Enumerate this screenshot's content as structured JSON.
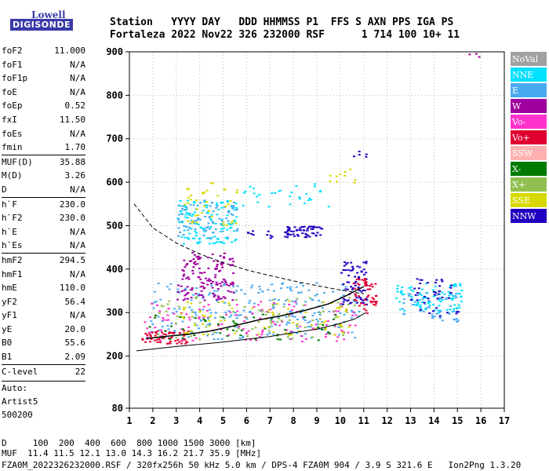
{
  "logo": {
    "line1": "Lowell",
    "line2": "DIGISONDE"
  },
  "header": {
    "labels": "Station   YYYY DAY   DDD HHMMSS P1  FFS S AXN PPS IGA PS",
    "values": "Fortaleza 2022 Nov22 326 232000 RSF      1 714 100 10+ 11"
  },
  "parameters": {
    "group1": [
      {
        "name": "foF2",
        "value": "11.000"
      },
      {
        "name": "foF1",
        "value": "N/A"
      },
      {
        "name": "foF1p",
        "value": "N/A"
      },
      {
        "name": "foE",
        "value": "N/A"
      },
      {
        "name": "foEp",
        "value": "0.52"
      },
      {
        "name": "fxI",
        "value": "11.50"
      },
      {
        "name": "foEs",
        "value": "N/A"
      },
      {
        "name": "fmin",
        "value": "1.70"
      }
    ],
    "group2": [
      {
        "name": "MUF(D)",
        "value": "35.88"
      },
      {
        "name": "M(D)",
        "value": "3.26"
      },
      {
        "name": "D",
        "value": "N/A"
      }
    ],
    "group3": [
      {
        "name": "h`F",
        "value": "230.0"
      },
      {
        "name": "h`F2",
        "value": "230.0"
      },
      {
        "name": "h`E",
        "value": "N/A"
      },
      {
        "name": "h`Es",
        "value": "N/A"
      }
    ],
    "group4": [
      {
        "name": "hmF2",
        "value": "294.5"
      },
      {
        "name": "hmF1",
        "value": "N/A"
      },
      {
        "name": "hmE",
        "value": "110.0"
      },
      {
        "name": "yF2",
        "value": "56.4"
      },
      {
        "name": "yF1",
        "value": "N/A"
      },
      {
        "name": "yE",
        "value": "20.0"
      },
      {
        "name": "B0",
        "value": "55.6"
      },
      {
        "name": "B1",
        "value": "2.09"
      }
    ],
    "group5": [
      {
        "name": "C-level",
        "value": "22"
      }
    ],
    "auto_lines": [
      "Auto:",
      "Artist5",
      "500200"
    ]
  },
  "legend": [
    {
      "label": "NoVal",
      "color": "#a0a0a0"
    },
    {
      "label": "NNE",
      "color": "#00e0ff"
    },
    {
      "label": "E",
      "color": "#4aaaf0"
    },
    {
      "label": "W",
      "color": "#a000a0"
    },
    {
      "label": "Vo-",
      "color": "#ff33cc"
    },
    {
      "label": "Vo+",
      "color": "#e00030"
    },
    {
      "label": "SSW",
      "color": "#ffb0b0"
    },
    {
      "label": "X-",
      "color": "#007a00"
    },
    {
      "label": "X+",
      "color": "#90c050"
    },
    {
      "label": "SSE",
      "color": "#d8d800"
    },
    {
      "label": "NNW",
      "color": "#2000c0"
    }
  ],
  "footer": {
    "line1": "D     100  200  400  600  800 1000 1500 3000 [km]",
    "line2": "MUF  11.4 11.5 12.1 13.0 14.3 16.2 21.7 35.9 [MHz]",
    "line3": "FZA0M_2022326232000.RSF / 320fx256h 50 kHz 5.0 km / DPS-4 FZA0M 904 / 3.9 S 321.6 E   Ion2Png 1.3.20"
  },
  "chart_data": {
    "type": "scatter",
    "title": "",
    "xlabel": "",
    "ylabel": "",
    "xlim": [
      1,
      17
    ],
    "ylim": [
      80,
      900
    ],
    "x_ticks": [
      1,
      2,
      3,
      4,
      5,
      6,
      7,
      8,
      9,
      10,
      11,
      12,
      13,
      14,
      15,
      16,
      17
    ],
    "y_ticks": [
      80,
      200,
      300,
      400,
      500,
      600,
      700,
      800,
      900
    ],
    "grid": true,
    "legend_position": "right",
    "trace_clusters": [
      {
        "series": "E",
        "x": [
          1.8,
          10.8
        ],
        "y": [
          240,
          370
        ],
        "n": 240
      },
      {
        "series": "Vo+",
        "x": [
          1.5,
          3.5
        ],
        "y": [
          230,
          260
        ],
        "n": 60
      },
      {
        "series": "Vo-",
        "x": [
          1.6,
          10.8
        ],
        "y": [
          235,
          330
        ],
        "n": 120
      },
      {
        "series": "X+",
        "x": [
          2.0,
          10.6
        ],
        "y": [
          240,
          340
        ],
        "n": 90
      },
      {
        "series": "X-",
        "x": [
          1.8,
          10.0
        ],
        "y": [
          235,
          300
        ],
        "n": 50
      },
      {
        "series": "SSE",
        "x": [
          3.0,
          10.6
        ],
        "y": [
          250,
          330
        ],
        "n": 70
      },
      {
        "series": "W",
        "x": [
          3.0,
          5.4
        ],
        "y": [
          330,
          440
        ],
        "n": 140
      },
      {
        "series": "NNE",
        "x": [
          3.0,
          5.6
        ],
        "y": [
          460,
          560
        ],
        "n": 120
      },
      {
        "series": "E",
        "x": [
          3.0,
          5.6
        ],
        "y": [
          470,
          560
        ],
        "n": 80
      },
      {
        "series": "NNE",
        "x": [
          5.8,
          9.5
        ],
        "y": [
          540,
          600
        ],
        "n": 30
      },
      {
        "series": "SSE",
        "x": [
          3.2,
          5.6
        ],
        "y": [
          500,
          600
        ],
        "n": 40
      },
      {
        "series": "NNW",
        "x": [
          7.6,
          9.2
        ],
        "y": [
          475,
          500
        ],
        "n": 60
      },
      {
        "series": "NNW",
        "x": [
          6.0,
          7.1
        ],
        "y": [
          470,
          490
        ],
        "n": 10
      },
      {
        "series": "NNW",
        "x": [
          10.0,
          11.1
        ],
        "y": [
          320,
          420
        ],
        "n": 70
      },
      {
        "series": "Vo+",
        "x": [
          10.5,
          11.5
        ],
        "y": [
          300,
          380
        ],
        "n": 50
      },
      {
        "series": "NNE",
        "x": [
          12.3,
          15.2
        ],
        "y": [
          300,
          370
        ],
        "n": 90
      },
      {
        "series": "E",
        "x": [
          12.6,
          15.0
        ],
        "y": [
          280,
          350
        ],
        "n": 50
      },
      {
        "series": "NNW",
        "x": [
          12.8,
          15.0
        ],
        "y": [
          290,
          380
        ],
        "n": 40
      },
      {
        "series": "SSE",
        "x": [
          9.5,
          10.6
        ],
        "y": [
          600,
          640
        ],
        "n": 10
      },
      {
        "series": "NNW",
        "x": [
          10.5,
          11.1
        ],
        "y": [
          660,
          680
        ],
        "n": 5
      },
      {
        "series": "W",
        "x": [
          15.0,
          16.2
        ],
        "y": [
          890,
          900
        ],
        "n": 3
      }
    ],
    "profile_curve": {
      "x": [
        1.7,
        2.5,
        3.5,
        4.5,
        5.5,
        6.5,
        7.5,
        8.5,
        9.5,
        10.3,
        11.0
      ],
      "y": [
        240,
        245,
        250,
        258,
        270,
        283,
        293,
        305,
        320,
        340,
        360
      ]
    },
    "lower_curve": {
      "x": [
        1.3,
        3,
        5,
        7,
        9,
        10,
        10.6,
        11.1
      ],
      "y": [
        212,
        222,
        232,
        245,
        262,
        275,
        285,
        300
      ]
    },
    "muf_dashed_curve": {
      "x": [
        1.2,
        2,
        3,
        4,
        5,
        6,
        7,
        8,
        9,
        10,
        11
      ],
      "y": [
        550,
        495,
        460,
        435,
        415,
        398,
        385,
        373,
        362,
        352,
        343
      ]
    }
  }
}
